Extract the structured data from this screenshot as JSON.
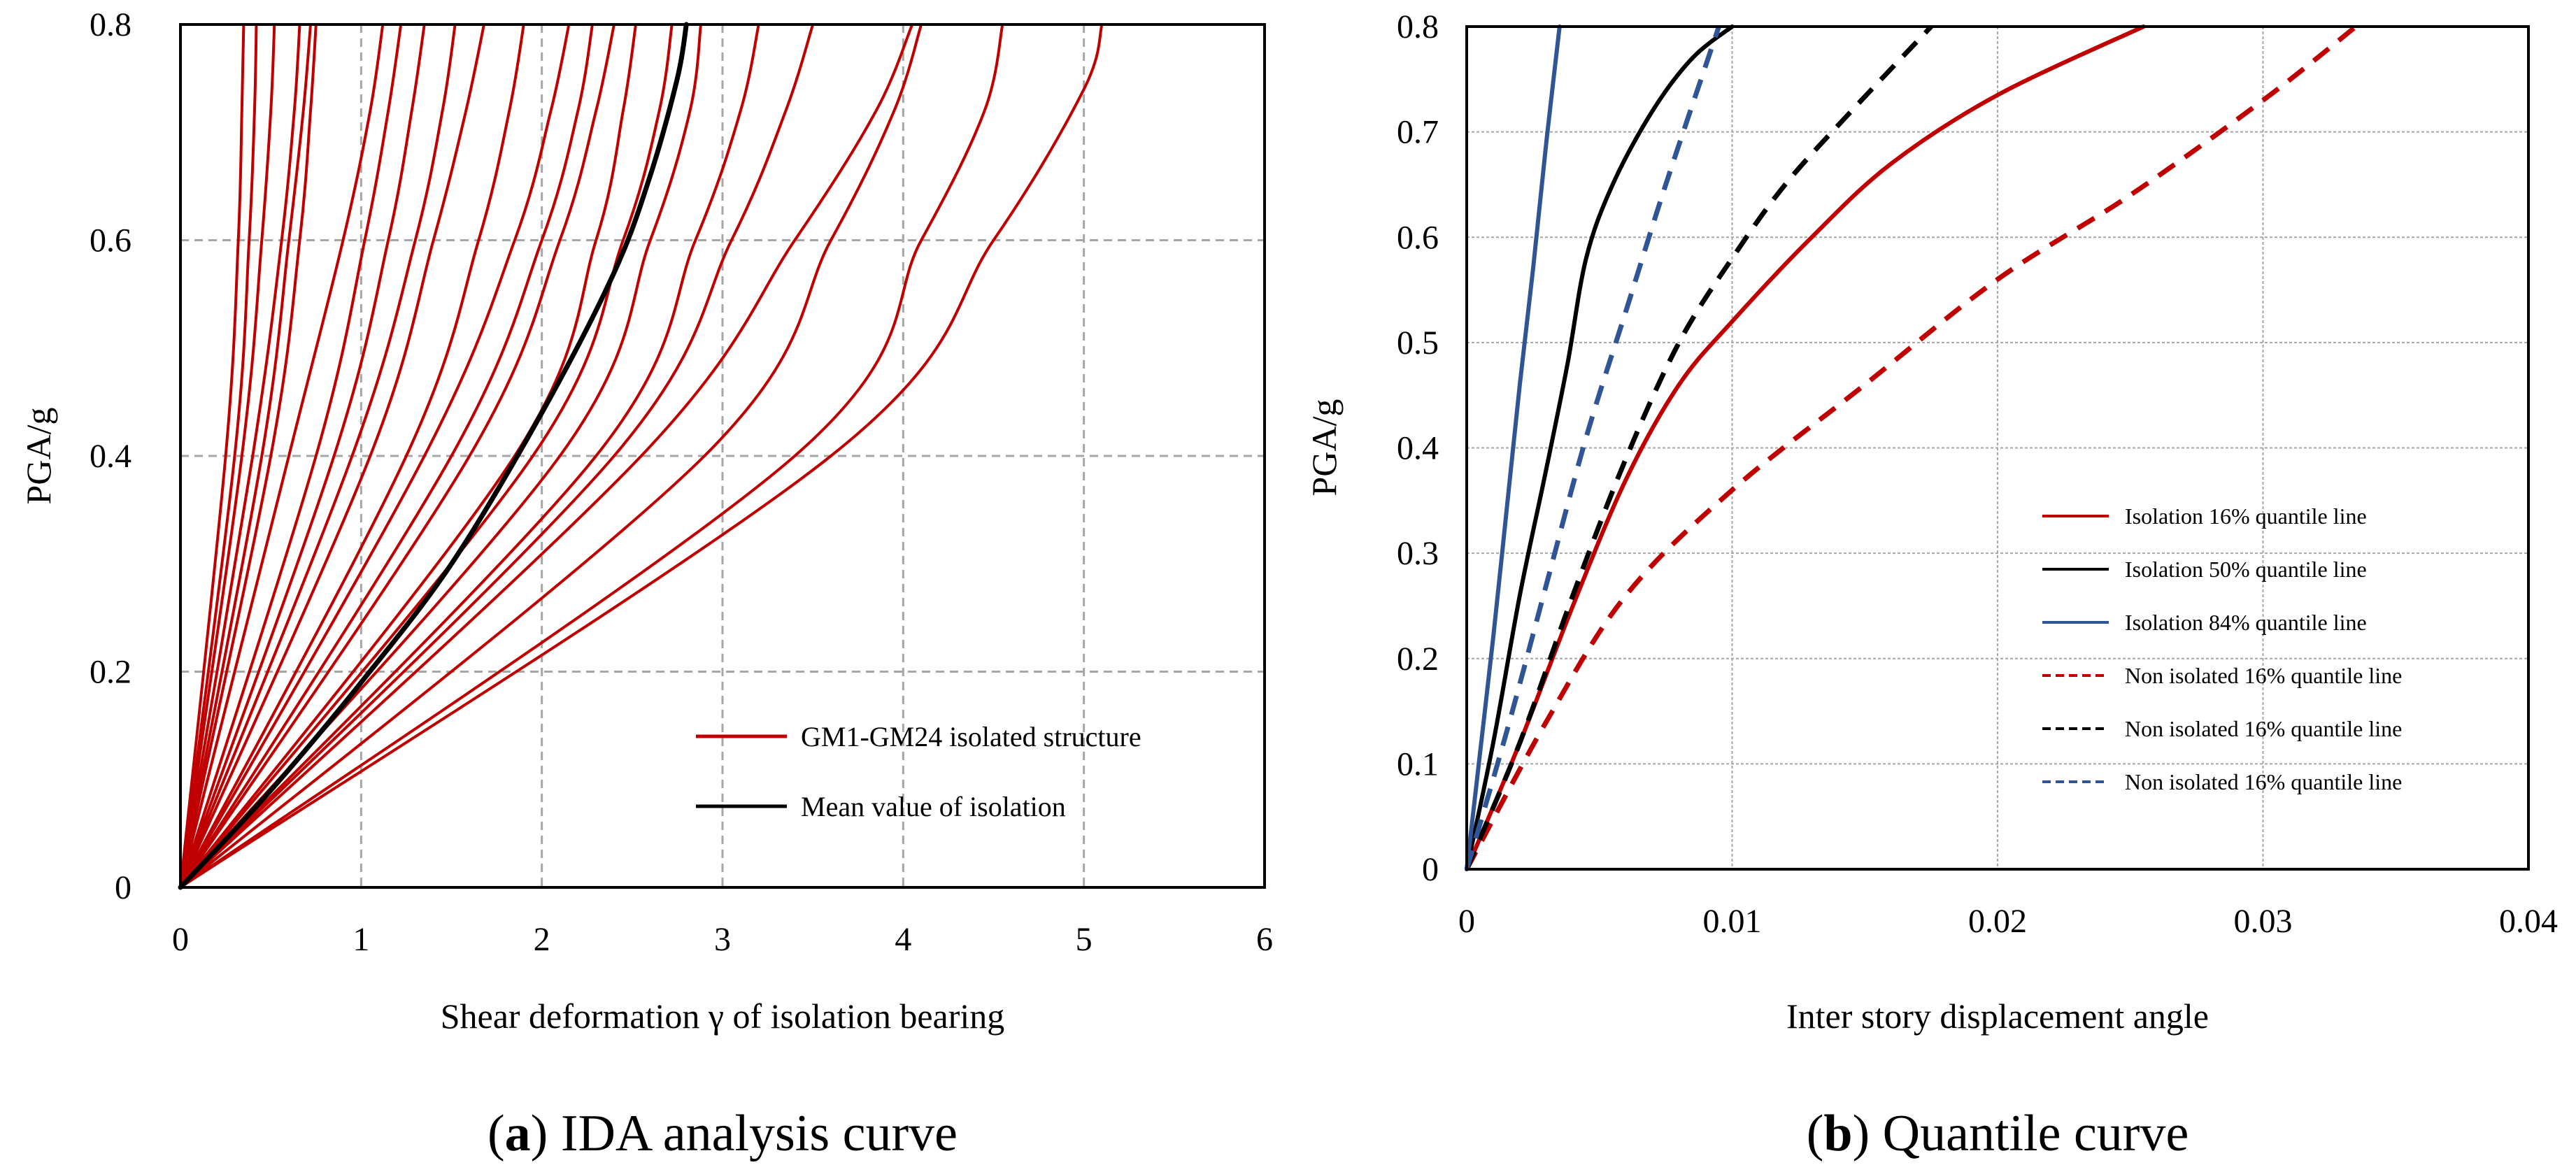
{
  "chart_data": [
    {
      "type": "line",
      "panel": "a",
      "caption_letter": "a",
      "caption_text": "IDA analysis curve",
      "xlabel": "Shear deformation γ of isolation bearing",
      "ylabel": "PGA/g",
      "xlim": [
        0,
        6
      ],
      "ylim": [
        0,
        0.8
      ],
      "xticks": [
        "0",
        "1",
        "2",
        "3",
        "4",
        "5",
        "6"
      ],
      "yticks": [
        "0",
        "0.2",
        "0.4",
        "0.6",
        "0.8"
      ],
      "grid": true,
      "legend_position": "lower-right",
      "legend": [
        "GM1-GM24 isolated structure",
        "Mean value of isolation"
      ],
      "colors": {
        "isolated": "#c00000",
        "mean": "#000000",
        "grid": "#a6a6a6"
      },
      "series": [
        {
          "name": "GM1-GM24 isolated structure",
          "group": "isolated",
          "x": [
            0,
            0.25,
            0.32,
            0.34,
            0.35
          ],
          "y": [
            0,
            0.4,
            0.6,
            0.72,
            0.8
          ]
        },
        {
          "name": "GM1-GM24 isolated structure",
          "group": "isolated",
          "x": [
            0,
            0.3,
            0.38,
            0.41,
            0.42
          ],
          "y": [
            0,
            0.4,
            0.6,
            0.72,
            0.8
          ]
        },
        {
          "name": "GM1-GM24 isolated structure",
          "group": "isolated",
          "x": [
            0,
            0.34,
            0.45,
            0.5,
            0.52
          ],
          "y": [
            0,
            0.4,
            0.6,
            0.72,
            0.8
          ]
        },
        {
          "name": "GM1-GM24 isolated structure",
          "group": "isolated",
          "x": [
            0,
            0.4,
            0.56,
            0.63,
            0.66
          ],
          "y": [
            0,
            0.4,
            0.6,
            0.72,
            0.8
          ]
        },
        {
          "name": "GM1-GM24 isolated structure",
          "group": "isolated",
          "x": [
            0,
            0.45,
            0.6,
            0.68,
            0.72
          ],
          "y": [
            0,
            0.4,
            0.6,
            0.72,
            0.8
          ]
        },
        {
          "name": "GM1-GM24 isolated structure",
          "group": "isolated",
          "x": [
            0,
            0.5,
            0.66,
            0.72,
            0.75
          ],
          "y": [
            0,
            0.4,
            0.6,
            0.72,
            0.8
          ]
        },
        {
          "name": "GM1-GM24 isolated structure",
          "group": "isolated",
          "x": [
            0,
            0.6,
            0.9,
            1.05,
            1.12
          ],
          "y": [
            0,
            0.4,
            0.6,
            0.72,
            0.8
          ]
        },
        {
          "name": "GM1-GM24 isolated structure",
          "group": "isolated",
          "x": [
            0,
            0.75,
            1.02,
            1.15,
            1.22
          ],
          "y": [
            0,
            0.4,
            0.6,
            0.72,
            0.8
          ]
        },
        {
          "name": "GM1-GM24 isolated structure",
          "group": "isolated",
          "x": [
            0,
            0.85,
            1.15,
            1.28,
            1.35
          ],
          "y": [
            0,
            0.4,
            0.6,
            0.72,
            0.8
          ]
        },
        {
          "name": "GM1-GM24 isolated structure",
          "group": "isolated",
          "x": [
            0,
            0.95,
            1.3,
            1.45,
            1.52
          ],
          "y": [
            0,
            0.4,
            0.6,
            0.72,
            0.8
          ]
        },
        {
          "name": "GM1-GM24 isolated structure",
          "group": "isolated",
          "x": [
            0,
            1.05,
            1.4,
            1.58,
            1.68
          ],
          "y": [
            0,
            0.4,
            0.6,
            0.72,
            0.8
          ]
        },
        {
          "name": "GM1-GM24 isolated structure",
          "group": "isolated",
          "x": [
            0,
            1.25,
            1.65,
            1.82,
            1.9
          ],
          "y": [
            0,
            0.4,
            0.6,
            0.72,
            0.8
          ]
        },
        {
          "name": "GM1-GM24 isolated structure",
          "group": "isolated",
          "x": [
            0,
            1.35,
            1.85,
            2.05,
            2.15
          ],
          "y": [
            0,
            0.4,
            0.6,
            0.72,
            0.8
          ]
        },
        {
          "name": "GM1-GM24 isolated structure",
          "group": "isolated",
          "x": [
            0,
            1.5,
            2.0,
            2.2,
            2.28
          ],
          "y": [
            0,
            0.4,
            0.6,
            0.72,
            0.8
          ]
        },
        {
          "name": "GM1-GM24 isolated structure",
          "group": "isolated",
          "x": [
            0,
            1.6,
            2.1,
            2.3,
            2.4
          ],
          "y": [
            0,
            0.4,
            0.6,
            0.72,
            0.8
          ]
        },
        {
          "name": "GM1-GM24 isolated structure",
          "group": "isolated",
          "x": [
            0,
            1.85,
            2.3,
            2.45,
            2.52
          ],
          "y": [
            0,
            0.4,
            0.6,
            0.72,
            0.8
          ]
        },
        {
          "name": "GM1-GM24 isolated structure",
          "group": "isolated",
          "x": [
            0,
            1.95,
            2.45,
            2.65,
            2.72
          ],
          "y": [
            0,
            0.4,
            0.6,
            0.72,
            0.8
          ]
        },
        {
          "name": "GM1-GM24 isolated structure",
          "group": "isolated",
          "x": [
            0,
            2.1,
            2.6,
            2.82,
            2.88
          ],
          "y": [
            0,
            0.4,
            0.6,
            0.72,
            0.8
          ]
        },
        {
          "name": "GM1-GM24 isolated structure",
          "group": "isolated",
          "x": [
            0,
            2.3,
            2.85,
            3.1,
            3.2
          ],
          "y": [
            0,
            0.4,
            0.6,
            0.72,
            0.8
          ]
        },
        {
          "name": "GM1-GM24 isolated structure",
          "group": "isolated",
          "x": [
            0,
            2.4,
            3.05,
            3.35,
            3.5
          ],
          "y": [
            0,
            0.4,
            0.6,
            0.72,
            0.8
          ]
        },
        {
          "name": "GM1-GM24 isolated structure",
          "group": "isolated",
          "x": [
            0,
            2.55,
            3.4,
            3.85,
            4.05
          ],
          "y": [
            0,
            0.4,
            0.6,
            0.72,
            0.8
          ]
        },
        {
          "name": "GM1-GM24 isolated structure",
          "group": "isolated",
          "x": [
            0,
            2.9,
            3.6,
            3.95,
            4.1
          ],
          "y": [
            0,
            0.4,
            0.6,
            0.72,
            0.8
          ]
        },
        {
          "name": "GM1-GM24 isolated structure",
          "group": "isolated",
          "x": [
            0,
            3.4,
            4.1,
            4.45,
            4.55
          ],
          "y": [
            0,
            0.4,
            0.6,
            0.72,
            0.8
          ]
        },
        {
          "name": "GM1-GM24 isolated structure",
          "group": "isolated",
          "x": [
            0,
            3.6,
            4.5,
            5.0,
            5.1
          ],
          "y": [
            0,
            0.4,
            0.6,
            0.74,
            0.8
          ]
        },
        {
          "name": "Mean value of isolation",
          "group": "mean",
          "x": [
            0,
            0.5,
            1.0,
            1.5,
            2.0,
            2.4,
            2.6,
            2.75,
            2.8
          ],
          "y": [
            0,
            0.09,
            0.19,
            0.3,
            0.44,
            0.57,
            0.66,
            0.75,
            0.8
          ]
        }
      ]
    },
    {
      "type": "line",
      "panel": "b",
      "caption_letter": "b",
      "caption_text": "Quantile curve",
      "xlabel": "Inter story displacement angle",
      "ylabel": "PGA/g",
      "xlim": [
        0,
        0.04
      ],
      "ylim": [
        0,
        0.8
      ],
      "xticks": [
        "0",
        "0.01",
        "0.02",
        "0.03",
        "0.04"
      ],
      "yticks": [
        "0",
        "0.1",
        "0.2",
        "0.3",
        "0.4",
        "0.5",
        "0.6",
        "0.7",
        "0.8"
      ],
      "grid": true,
      "legend_position": "center-right",
      "legend": [
        "Isolation 16% quantile line",
        "Isolation 50% quantile line",
        "Isolation 84% quantile line",
        "Non isolated 16% quantile line",
        "Non isolated 16% quantile line",
        "Non isolated 16% quantile line"
      ],
      "colors": {
        "red": "#c00000",
        "black": "#000000",
        "blue": "#2f5597",
        "grid": "#a6a6a6"
      },
      "series": [
        {
          "name": "Isolation 16% quantile line",
          "color": "red",
          "dash": false,
          "x": [
            0,
            0.002,
            0.004,
            0.006,
            0.008,
            0.01,
            0.013,
            0.016,
            0.02,
            0.0255
          ],
          "y": [
            0,
            0.12,
            0.25,
            0.37,
            0.46,
            0.52,
            0.6,
            0.67,
            0.735,
            0.8
          ]
        },
        {
          "name": "Isolation 50% quantile line",
          "color": "black",
          "dash": false,
          "x": [
            0,
            0.001,
            0.002,
            0.003,
            0.0038,
            0.0045,
            0.0055,
            0.007,
            0.0085,
            0.01
          ],
          "y": [
            0,
            0.12,
            0.26,
            0.38,
            0.48,
            0.58,
            0.65,
            0.72,
            0.77,
            0.8
          ]
        },
        {
          "name": "Isolation 84% quantile line",
          "color": "blue",
          "dash": false,
          "x": [
            0,
            0.0005,
            0.001,
            0.0015,
            0.002,
            0.0025,
            0.003,
            0.0035
          ],
          "y": [
            0,
            0.11,
            0.22,
            0.34,
            0.46,
            0.57,
            0.69,
            0.8
          ]
        },
        {
          "name": "Non isolated 16% quantile line",
          "color": "red",
          "dash": true,
          "x": [
            0,
            0.003,
            0.006,
            0.01,
            0.015,
            0.02,
            0.025,
            0.03,
            0.0335
          ],
          "y": [
            0,
            0.14,
            0.26,
            0.36,
            0.46,
            0.56,
            0.64,
            0.73,
            0.8
          ]
        },
        {
          "name": "Non isolated 16% quantile line",
          "color": "black",
          "dash": true,
          "x": [
            0,
            0.002,
            0.004,
            0.006,
            0.008,
            0.01,
            0.012,
            0.0145,
            0.0175
          ],
          "y": [
            0,
            0.12,
            0.26,
            0.39,
            0.5,
            0.58,
            0.65,
            0.72,
            0.8
          ]
        },
        {
          "name": "Non isolated 16% quantile line",
          "color": "blue",
          "dash": true,
          "x": [
            0,
            0.0015,
            0.003,
            0.0045,
            0.006,
            0.0075,
            0.0095
          ],
          "y": [
            0,
            0.13,
            0.27,
            0.41,
            0.53,
            0.65,
            0.8
          ]
        }
      ]
    }
  ]
}
